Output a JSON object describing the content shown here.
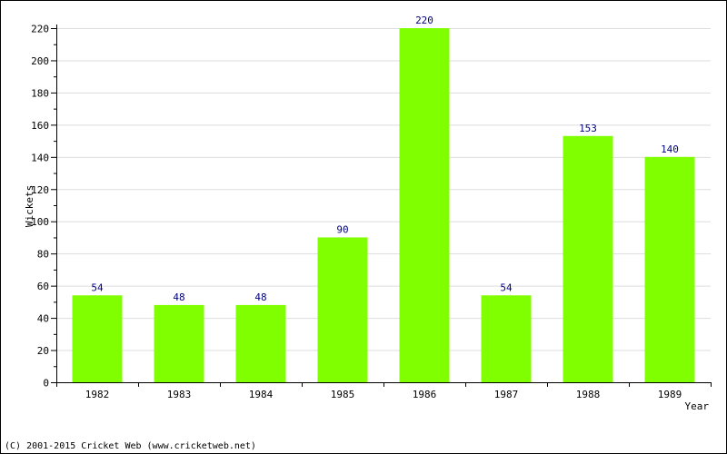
{
  "chart_data": {
    "type": "bar",
    "categories": [
      "1982",
      "1983",
      "1984",
      "1985",
      "1986",
      "1987",
      "1988",
      "1989"
    ],
    "values": [
      54,
      48,
      48,
      90,
      220,
      54,
      153,
      140
    ],
    "data_labels": [
      "54",
      "48",
      "48",
      "90",
      "220",
      "54",
      "153",
      "140"
    ],
    "ylabel": "Wickets",
    "xlabel": "Year",
    "ylim": [
      0,
      220
    ],
    "yticks": [
      0,
      20,
      40,
      60,
      80,
      100,
      120,
      140,
      160,
      180,
      200,
      220
    ],
    "ytick_labels": [
      "0",
      "20",
      "40",
      "60",
      "80",
      "100",
      "120",
      "140",
      "160",
      "180",
      "200",
      "220"
    ],
    "grid": true,
    "colors": {
      "bar": "#80ff00",
      "grid": "#dddddd",
      "axis": "#000000",
      "value_label": "#000080"
    }
  },
  "footer": {
    "copyright": "(C) 2001-2015 Cricket Web (www.cricketweb.net)"
  }
}
